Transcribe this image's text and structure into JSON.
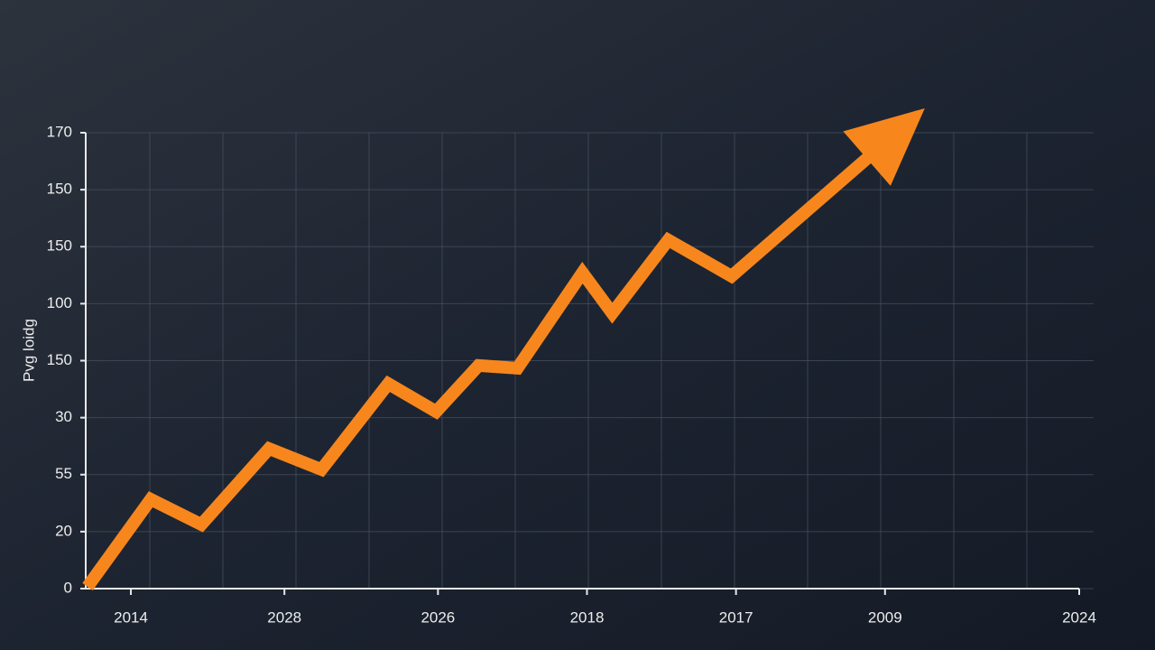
{
  "chart_data": {
    "type": "line",
    "y_label": "Pvg loidg",
    "x": [
      0.02,
      0.72,
      1.28,
      2.03,
      2.61,
      3.35,
      3.88,
      4.35,
      4.78,
      5.5,
      5.83,
      6.45,
      7.15,
      9.29
    ],
    "series": [
      {
        "color": "#f7871d",
        "values": [
          0.7,
          33.3,
          23.9,
          52.2,
          44.4,
          76.4,
          66.0,
          83.2,
          82.2,
          117.8,
          102.7,
          130.0,
          116.5,
          179.1
        ]
      }
    ],
    "xlim": [
      0,
      11
    ],
    "xticks": [
      {
        "value": 0.5,
        "label": "2014"
      },
      {
        "value": 2.2,
        "label": "2028"
      },
      {
        "value": 3.9,
        "label": "2026"
      },
      {
        "value": 5.55,
        "label": "2018"
      },
      {
        "value": 7.2,
        "label": "2017"
      },
      {
        "value": 8.85,
        "label": "2009"
      },
      {
        "value": 11,
        "label": "2024"
      }
    ],
    "ylim": [
      0,
      170
    ],
    "yticks": [
      0,
      {
        "value": 21.25,
        "label": "20"
      },
      {
        "value": 42.5,
        "label": "55"
      },
      {
        "value": 63.75,
        "label": "30"
      },
      {
        "value": 85,
        "label": "150"
      },
      {
        "value": 106.25,
        "label": "100"
      },
      {
        "value": 127.5,
        "label": "150"
      },
      {
        "value": 148.75,
        "label": "150"
      },
      170
    ],
    "grid": true
  }
}
